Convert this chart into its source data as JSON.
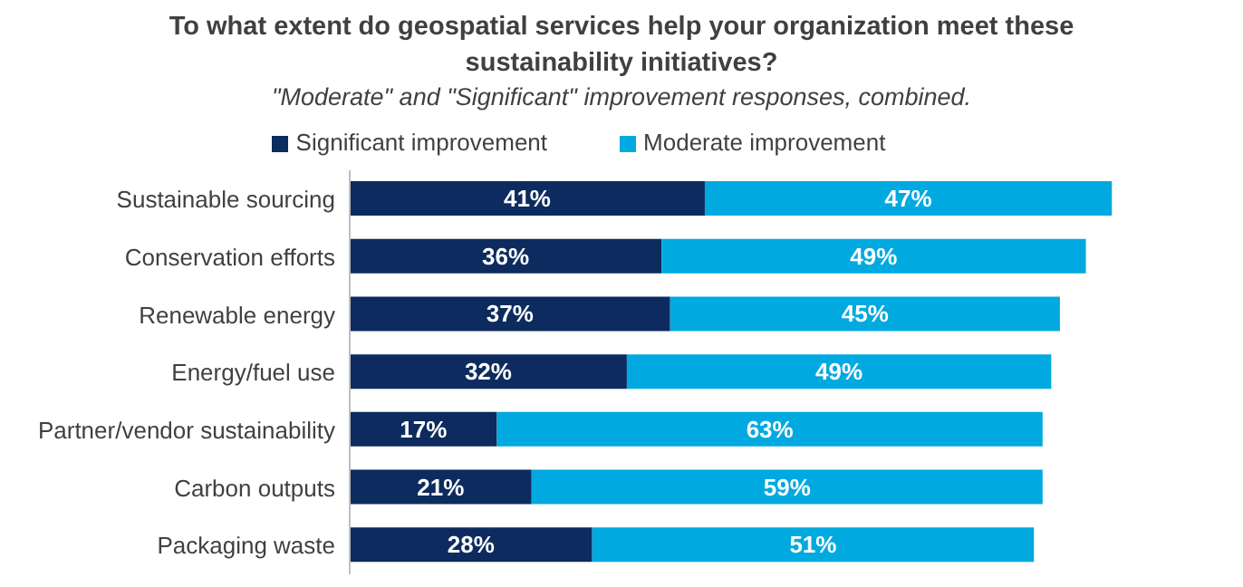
{
  "chart_data": {
    "type": "bar",
    "orientation": "horizontal",
    "stacked": true,
    "title": "To what extent do  geospatial services help your organization meet these sustainability initiatives?",
    "subtitle": "\"Moderate\" and \"Significant\" improvement responses, combined.",
    "categories": [
      "Sustainable sourcing",
      "Conservation efforts",
      "Renewable energy",
      "Energy/fuel use",
      "Partner/vendor sustainability",
      "Carbon outputs",
      "Packaging waste"
    ],
    "series": [
      {
        "name": "Significant improvement",
        "color": "#0d2b5e",
        "values": [
          41,
          36,
          37,
          32,
          17,
          21,
          28
        ],
        "value_labels": [
          "41%",
          "36%",
          "37%",
          "32%",
          "17%",
          "21%",
          "28%"
        ]
      },
      {
        "name": "Moderate improvement",
        "color": "#00a9e0",
        "values": [
          47,
          49,
          45,
          49,
          63,
          59,
          51
        ],
        "value_labels": [
          "47%",
          "49%",
          "45%",
          "49%",
          "63%",
          "59%",
          "51%"
        ]
      }
    ],
    "tick_labels": "y",
    "grid": false,
    "legend": "top"
  }
}
